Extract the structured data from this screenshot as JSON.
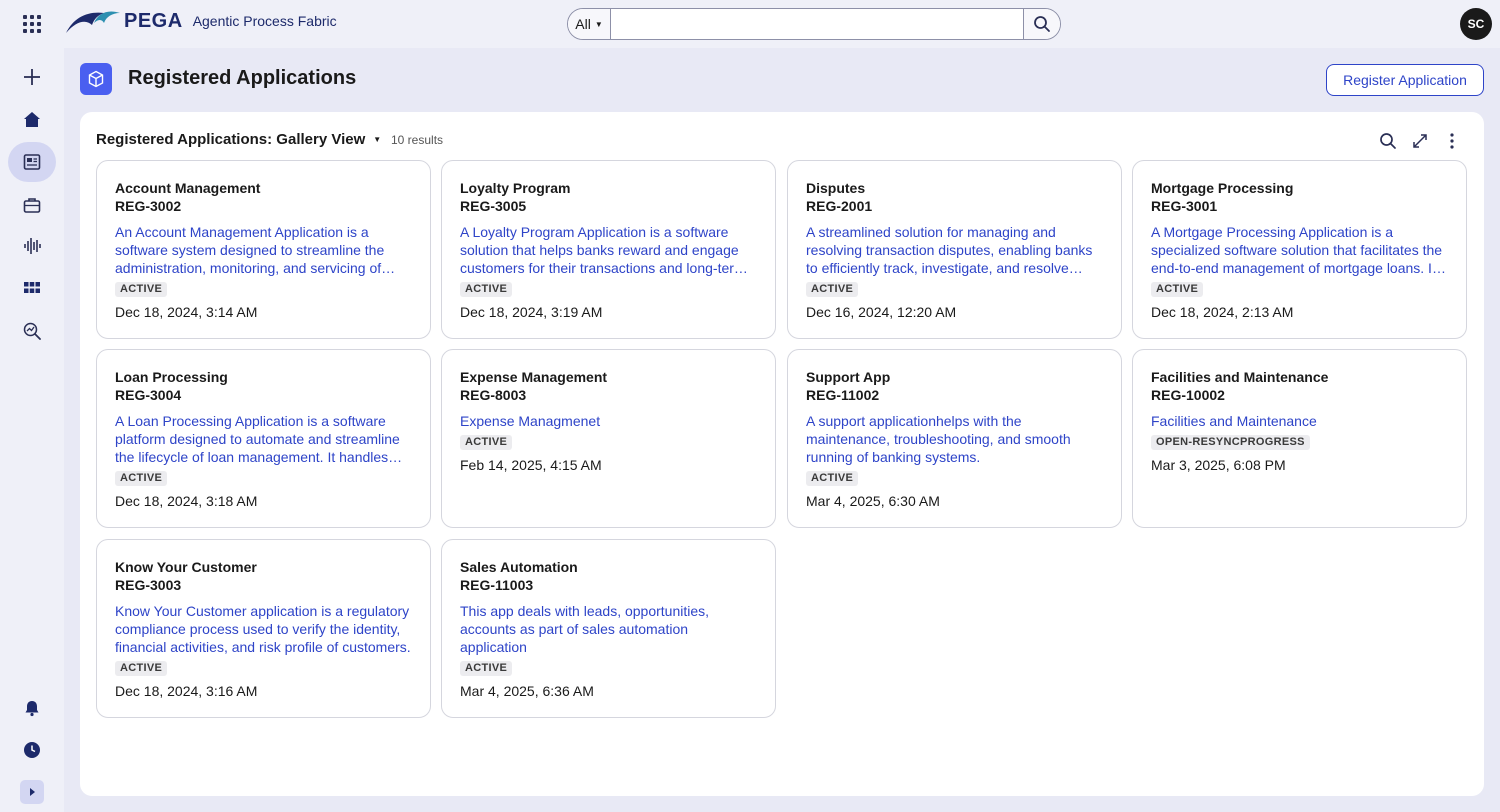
{
  "app": {
    "brand": "PEGA",
    "product": "Agentic Process Fabric",
    "user_initials": "SC"
  },
  "search": {
    "scope": "All",
    "placeholder": ""
  },
  "header": {
    "title": "Registered Applications",
    "register_label": "Register Application"
  },
  "gallery": {
    "title": "Registered Applications: Gallery View",
    "results": "10 results"
  },
  "cards": [
    {
      "name": "Account Management",
      "id": "REG-3002",
      "description": "An Account Management Application is a software system designed to streamline the administration, monitoring, and servicing of customer accounts.",
      "status": "ACTIVE",
      "date": "Dec 18, 2024, 3:14 AM"
    },
    {
      "name": "Loyalty Program",
      "id": "REG-3005",
      "description": "A Loyalty Program Application is a software solution that helps banks reward and engage customers for their transactions and long-term relationships.",
      "status": "ACTIVE",
      "date": "Dec 18, 2024, 3:19 AM"
    },
    {
      "name": "Disputes",
      "id": "REG-2001",
      "description": "A streamlined solution for managing and resolving transaction disputes, enabling banks to efficiently track, investigate, and resolve customer claims.",
      "status": "ACTIVE",
      "date": "Dec 16, 2024, 12:20 AM"
    },
    {
      "name": "Mortgage Processing",
      "id": "REG-3001",
      "description": "A Mortgage Processing Application is a specialized software solution that facilitates the end-to-end management of mortgage loans. It streamlines the process.",
      "status": "ACTIVE",
      "date": "Dec 18, 2024, 2:13 AM"
    },
    {
      "name": "Loan Processing",
      "id": "REG-3004",
      "description": "A Loan Processing Application is a software platform designed to automate and streamline the lifecycle of loan management. It handles tasks such as applications.",
      "status": "ACTIVE",
      "date": "Dec 18, 2024, 3:18 AM"
    },
    {
      "name": "Expense Management",
      "id": "REG-8003",
      "description": "Expense Managmenet",
      "status": "ACTIVE",
      "date": "Feb 14, 2025, 4:15 AM"
    },
    {
      "name": "Support App",
      "id": "REG-11002",
      "description": "A support applicationhelps with the maintenance, troubleshooting, and smooth running of banking systems.",
      "status": "ACTIVE",
      "date": "Mar 4, 2025, 6:30 AM"
    },
    {
      "name": "Facilities and Maintenance",
      "id": "REG-10002",
      "description": "Facilities and Maintenance",
      "status": "OPEN-RESYNCPROGRESS",
      "date": "Mar 3, 2025, 6:08 PM"
    },
    {
      "name": "Know Your Customer",
      "id": "REG-3003",
      "description": "Know Your Customer application is a regulatory compliance process used to verify the identity, financial activities, and risk profile of customers.",
      "status": "ACTIVE",
      "date": "Dec 18, 2024, 3:16 AM"
    },
    {
      "name": "Sales Automation",
      "id": "REG-11003",
      "description": "This app deals with leads, opportunities, accounts as part of sales automation application",
      "status": "ACTIVE",
      "date": "Mar 4, 2025, 6:36 AM"
    }
  ],
  "icons": {
    "rail": [
      "plus-icon",
      "home-icon",
      "applications-icon",
      "briefcase-icon",
      "waveform-icon",
      "grid-icon",
      "analytics-icon",
      "bell-icon",
      "clock-icon",
      "expand-rail-icon"
    ]
  },
  "colors": {
    "accent": "#2e44c8",
    "page_icon": "#4a5ff0",
    "background": "#e8e9f5"
  }
}
